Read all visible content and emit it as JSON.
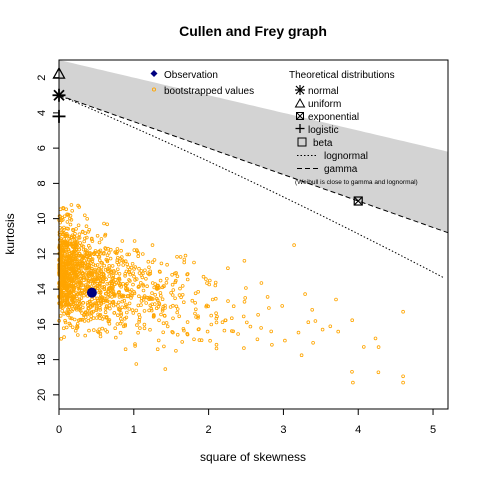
{
  "chart_data": {
    "type": "scatter",
    "title": "Cullen and Frey graph",
    "xlabel": "square of skewness",
    "ylabel": "kurtosis",
    "xlim": [
      0,
      5.2
    ],
    "ylim": [
      1,
      20.8
    ],
    "y_reversed": true,
    "x_ticks": [
      0,
      1,
      2,
      3,
      4,
      5
    ],
    "y_ticks": [
      2,
      4,
      6,
      8,
      10,
      12,
      14,
      16,
      18,
      20
    ],
    "grid": false,
    "observation": {
      "label": "Observation",
      "x": 0.44,
      "y": 14.2,
      "color": "#000080"
    },
    "bootstrap": {
      "label": "bootstrapped values",
      "color": "#FFA500",
      "n_shown": 1400,
      "x_range": [
        0,
        4.6
      ],
      "y_range": [
        8.1,
        19.3
      ]
    },
    "theoretical_title": "Theoretical distributions",
    "distributions": {
      "normal": {
        "label": "normal",
        "x": 0,
        "y": 3
      },
      "uniform": {
        "label": "uniform",
        "x": 0,
        "y": 1.8
      },
      "exponential": {
        "label": "exponential",
        "x": 4,
        "y": 9
      },
      "logistic": {
        "label": "logistic",
        "x": 0,
        "y": 4.2
      },
      "beta": {
        "label": "beta",
        "region_color": "#D3D3D3"
      },
      "lognormal": {
        "label": "lognormal",
        "line": "dotted"
      },
      "gamma": {
        "label": "gamma",
        "line": "dashed"
      }
    },
    "note": "(Weibull is close to gamma and lognormal)",
    "legend_positions": [
      "top-center",
      "top-right"
    ]
  }
}
